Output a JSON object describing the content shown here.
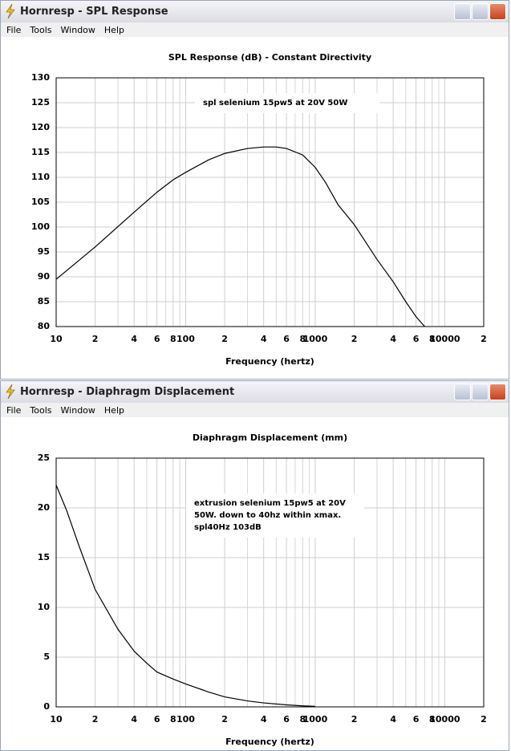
{
  "windows": [
    {
      "title": "Hornresp - SPL Response",
      "menu": [
        "File",
        "Tools",
        "Window",
        "Help"
      ]
    },
    {
      "title": "Hornresp - Diaphragm Displacement",
      "menu": [
        "File",
        "Tools",
        "Window",
        "Help"
      ]
    }
  ],
  "chart_data": [
    {
      "type": "line",
      "title": "SPL Response (dB) - Constant Directivity",
      "x_label": "Frequency (hertz)",
      "x_scale": "log",
      "xlim": [
        10,
        20000
      ],
      "xticks": [
        10,
        {
          "value": 20,
          "label": "2"
        },
        {
          "value": 40,
          "label": "4"
        },
        {
          "value": 60,
          "label": "6"
        },
        {
          "value": 80,
          "label": "8"
        },
        100,
        {
          "value": 200,
          "label": "2"
        },
        {
          "value": 400,
          "label": "4"
        },
        {
          "value": 600,
          "label": "6"
        },
        {
          "value": 800,
          "label": "8"
        },
        1000,
        {
          "value": 2000,
          "label": "2"
        },
        {
          "value": 4000,
          "label": "4"
        },
        {
          "value": 6000,
          "label": "6"
        },
        {
          "value": 8000,
          "label": "8"
        },
        10000,
        {
          "value": 20000,
          "label": "2"
        }
      ],
      "xminor": [
        30,
        50,
        70,
        90,
        300,
        500,
        700,
        900,
        3000,
        5000,
        7000,
        9000
      ],
      "ylim": [
        80,
        130
      ],
      "yticks": [
        80,
        85,
        90,
        95,
        100,
        105,
        110,
        115,
        120,
        125,
        130
      ],
      "grid": true,
      "annotation": [
        "spl selenium 15pw5 at 20V 50W"
      ],
      "x": [
        10,
        20,
        40,
        60,
        80,
        100,
        150,
        200,
        300,
        400,
        500,
        600,
        800,
        1000,
        1200,
        1500,
        2000,
        3000,
        4000,
        5000,
        6000,
        7000
      ],
      "series": [
        {
          "color": "#000000",
          "values": [
            89.5,
            96,
            103,
            107,
            109.5,
            111,
            113.5,
            114.8,
            115.8,
            116.1,
            116.1,
            115.8,
            114.5,
            112,
            109,
            104.5,
            100.5,
            93.5,
            89,
            85,
            82,
            80
          ]
        }
      ]
    },
    {
      "type": "line",
      "title": "Diaphragm Displacement (mm)",
      "x_label": "Frequency (hertz)",
      "x_scale": "log",
      "xlim": [
        10,
        20000
      ],
      "xticks": [
        10,
        {
          "value": 20,
          "label": "2"
        },
        {
          "value": 40,
          "label": "4"
        },
        {
          "value": 60,
          "label": "6"
        },
        {
          "value": 80,
          "label": "8"
        },
        100,
        {
          "value": 200,
          "label": "2"
        },
        {
          "value": 400,
          "label": "4"
        },
        {
          "value": 600,
          "label": "6"
        },
        {
          "value": 800,
          "label": "8"
        },
        1000,
        {
          "value": 2000,
          "label": "2"
        },
        {
          "value": 4000,
          "label": "4"
        },
        {
          "value": 6000,
          "label": "6"
        },
        {
          "value": 8000,
          "label": "8"
        },
        10000,
        {
          "value": 20000,
          "label": "2"
        }
      ],
      "xminor": [
        30,
        50,
        70,
        90,
        300,
        500,
        700,
        900,
        3000,
        5000,
        7000,
        9000
      ],
      "ylim": [
        0,
        25
      ],
      "yticks": [
        0,
        5,
        10,
        15,
        20,
        25
      ],
      "grid": true,
      "annotation": [
        "extrusion selenium 15pw5 at 20V",
        "50W. down to 40hz within xmax.",
        "spl40Hz 103dB"
      ],
      "x": [
        10,
        12,
        15,
        20,
        30,
        40,
        50,
        60,
        80,
        100,
        150,
        200,
        300,
        400,
        600,
        800,
        1000
      ],
      "series": [
        {
          "color": "#000000",
          "values": [
            22.3,
            19.8,
            16.2,
            11.8,
            7.8,
            5.6,
            4.4,
            3.5,
            2.8,
            2.3,
            1.5,
            1.0,
            0.6,
            0.4,
            0.2,
            0.1,
            0.05
          ]
        }
      ]
    }
  ]
}
